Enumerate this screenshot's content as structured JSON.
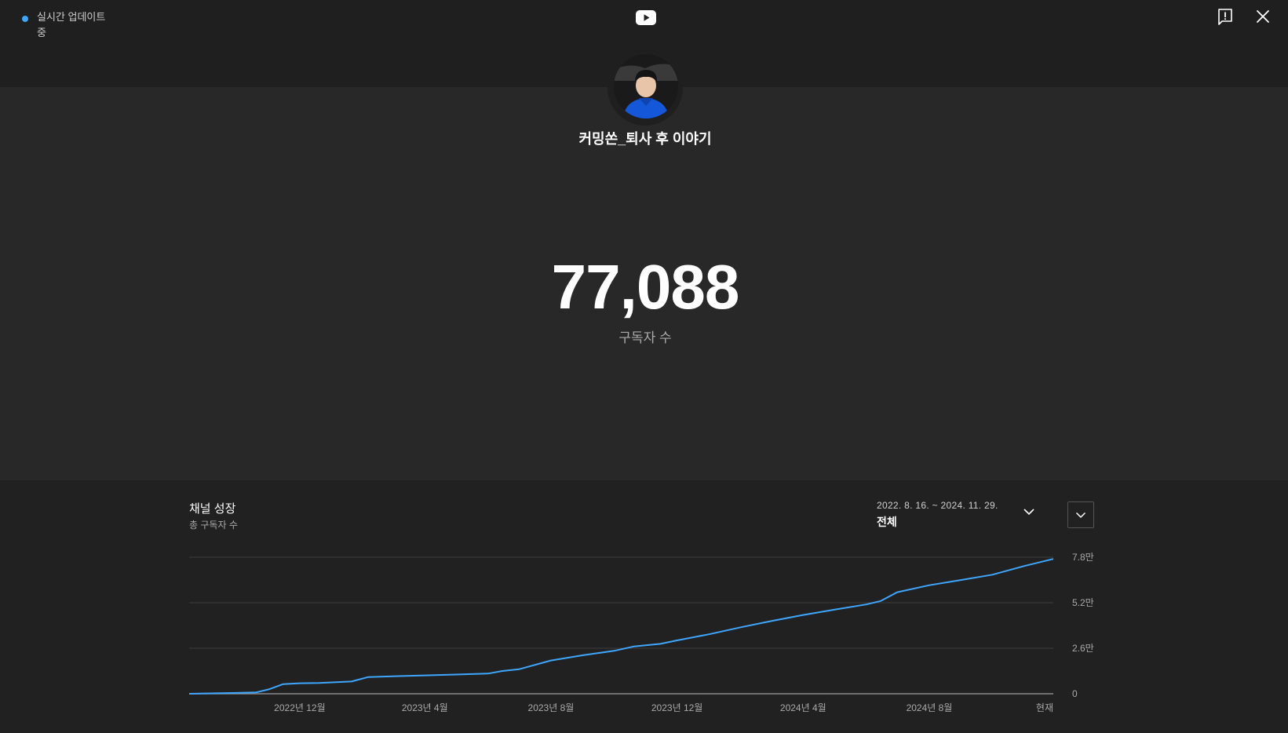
{
  "live": {
    "label": "실시간 업데이트 중"
  },
  "channel": {
    "name": "커밍쏜_퇴사 후 이야기"
  },
  "subscribers": {
    "count": "77,088",
    "label": "구독자 수"
  },
  "growth": {
    "title": "채널 성장",
    "subtitle": "총 구독자 수",
    "range_dates": "2022. 8. 16. ~ 2024. 11. 29.",
    "range_label": "전체"
  },
  "icons": {
    "logo": "youtube-logo-icon",
    "report": "report-icon",
    "close": "close-icon",
    "range": "chevron-down-icon",
    "toggle": "chevron-down-icon"
  },
  "colors": {
    "line": "#3ea6ff",
    "live_dot": "#3ea6ff"
  },
  "chart_data": {
    "type": "line",
    "xlabel": "",
    "ylabel": "",
    "x_ticks": [
      "2022년 12월",
      "2023년 4월",
      "2023년 8월",
      "2023년 12월",
      "2024년 4월",
      "2024년 8월",
      "현재"
    ],
    "y_ticks": [
      "0",
      "2.6만",
      "5.2만",
      "7.8만"
    ],
    "ylim": [
      0,
      78000
    ],
    "grid": true,
    "series": [
      {
        "x": [
          "2022-08-16",
          "2022-10-01",
          "2022-10-20",
          "2022-11-01",
          "2022-11-15",
          "2022-12-01",
          "2022-12-20",
          "2023-01-01",
          "2023-01-20",
          "2023-02-05",
          "2023-03-01",
          "2023-04-01",
          "2023-05-01",
          "2023-06-01",
          "2023-06-15",
          "2023-07-01",
          "2023-08-01",
          "2023-09-01",
          "2023-10-01",
          "2023-10-20",
          "2023-11-15",
          "2023-12-01",
          "2024-01-01",
          "2024-02-01",
          "2024-03-01",
          "2024-04-01",
          "2024-05-01",
          "2024-06-01",
          "2024-06-15",
          "2024-07-01",
          "2024-08-01",
          "2024-09-01",
          "2024-10-01",
          "2024-11-01",
          "2024-11-29"
        ],
        "values": [
          0,
          500,
          800,
          2500,
          5500,
          6000,
          6200,
          6500,
          7000,
          9500,
          10000,
          10500,
          11000,
          11500,
          13000,
          14000,
          19000,
          22000,
          24500,
          27000,
          28500,
          30500,
          34000,
          38000,
          41500,
          45000,
          48000,
          51000,
          53000,
          58000,
          62000,
          65000,
          68000,
          73000,
          77000
        ]
      }
    ]
  }
}
